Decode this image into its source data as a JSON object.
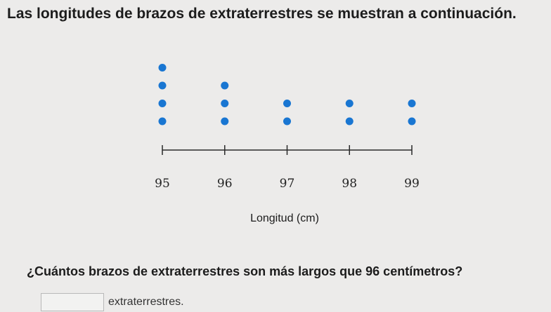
{
  "prompt": "Las longitudes de brazos de extraterrestres se muestran a continuación.",
  "question": "¿Cuántos brazos de extraterrestres son más largos que 96 centímetros?",
  "answer": {
    "value": "",
    "suffix": "extraterrestres."
  },
  "colors": {
    "dot": "#1976d2",
    "axis": "#2a2a2a"
  },
  "chart_data": {
    "type": "dot plot",
    "xlabel": "Longitud (cm)",
    "ticks": [
      95,
      96,
      97,
      98,
      99
    ],
    "x": [
      95,
      96,
      97,
      98,
      99
    ],
    "counts": [
      4,
      3,
      2,
      2,
      2
    ],
    "xlim": [
      95,
      99
    ]
  }
}
